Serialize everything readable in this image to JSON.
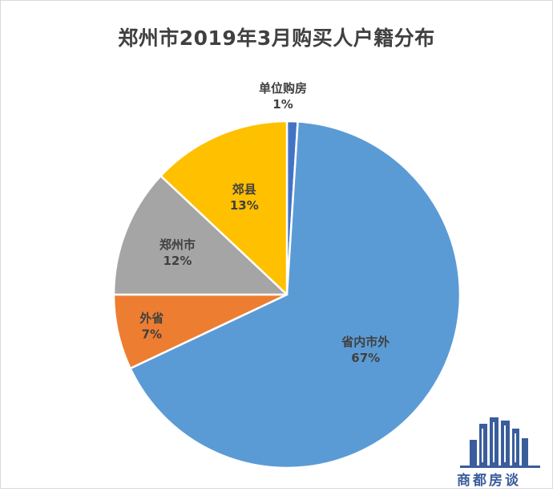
{
  "chart_data": {
    "type": "pie",
    "title": "郑州市2019年3月购买人户籍分布",
    "slices": [
      {
        "label": "单位购房",
        "value": 1,
        "value_label": "1%",
        "color": "#4472c4"
      },
      {
        "label": "省内市外",
        "value": 67,
        "value_label": "67%",
        "color": "#5b9bd5"
      },
      {
        "label": "外省",
        "value": 7,
        "value_label": "7%",
        "color": "#ed7d31"
      },
      {
        "label": "郑州市",
        "value": 12,
        "value_label": "12%",
        "color": "#a5a5a5"
      },
      {
        "label": "郊县",
        "value": 13,
        "value_label": "13%",
        "color": "#ffc000"
      }
    ],
    "start_angle": "12 o'clock",
    "direction": "clockwise",
    "legend": "none"
  },
  "watermark": {
    "text": "商都房谈",
    "color": "#3a5d9c"
  }
}
